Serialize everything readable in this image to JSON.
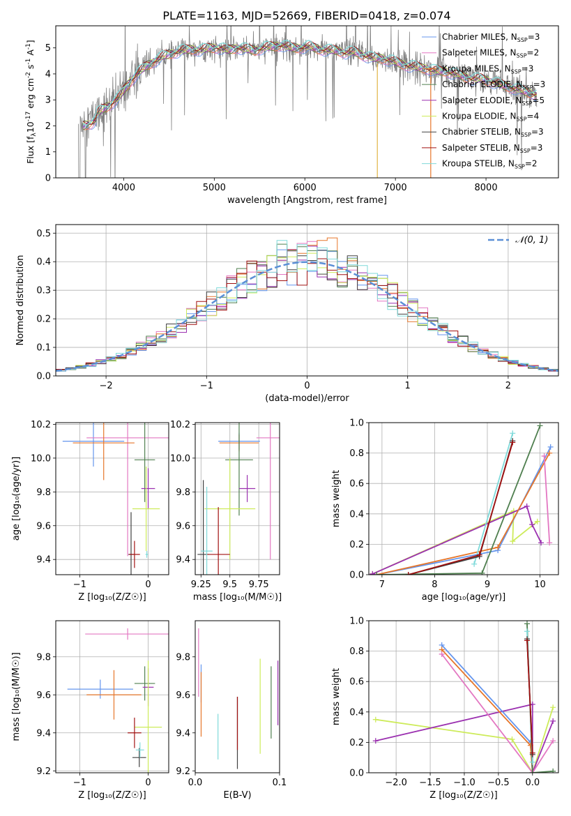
{
  "title": "PLATE=1163, MJD=52669, FIBERID=0418, z=0.074",
  "colors": {
    "Chabrier MILES": "#6495ED",
    "Salpeter MILES": "#E377C2",
    "Kroupa MILES": "#E6762A",
    "Chabrier ELODIE": "#4F7F4F",
    "Salpeter ELODIE": "#9B30B0",
    "Kroupa ELODIE": "#CDEB5A",
    "Chabrier STELIB": "#404040",
    "Salpeter STELIB": "#A01010",
    "Kroupa STELIB": "#7FDADA",
    "data": "#808080",
    "normal": "#5B8FD6"
  },
  "chart_data": [
    {
      "id": "spectrum",
      "type": "line",
      "title": "PLATE=1163, MJD=52669, FIBERID=0418, z=0.074",
      "xlabel": "wavelength [Angstrom, rest frame]",
      "ylabel_pre": "Flux [f",
      "ylabel_sub": "λ",
      "ylabel_mid": "10",
      "ylabel_sup1": "-17",
      "ylabel_post": " erg cm",
      "ylabel_sup2": "-2",
      "ylabel_s": " s",
      "ylabel_sup3": "-1",
      "ylabel_end": " A",
      "ylabel_sup4": "-1",
      "ylabel_close": "]",
      "xlim": [
        3250,
        8800
      ],
      "ylim": [
        0,
        5.85
      ],
      "xticks": [
        4000,
        5000,
        6000,
        7000,
        8000
      ],
      "yticks": [
        0,
        1,
        2,
        3,
        4,
        5
      ],
      "grid": false,
      "legend_position": "right",
      "legend": [
        {
          "label": "Chabrier MILES, N",
          "sub": "SSP",
          "n": "=3",
          "model": "Chabrier MILES"
        },
        {
          "label": "Salpeter MILES, N",
          "sub": "SSP",
          "n": "=2",
          "model": "Salpeter MILES"
        },
        {
          "label": "Kroupa MILES, N",
          "sub": "SSP",
          "n": "=3",
          "model": "Kroupa MILES"
        },
        {
          "label": "Chabrier ELODIE, N",
          "sub": "SSP",
          "n": "=3",
          "model": "Chabrier ELODIE"
        },
        {
          "label": "Salpeter ELODIE, N",
          "sub": "SSP",
          "n": "=5",
          "model": "Salpeter ELODIE"
        },
        {
          "label": "Kroupa ELODIE, N",
          "sub": "SSP",
          "n": "=4",
          "model": "Kroupa ELODIE"
        },
        {
          "label": "Chabrier STELIB, N",
          "sub": "SSP",
          "n": "=3",
          "model": "Chabrier STELIB"
        },
        {
          "label": "Salpeter STELIB, N",
          "sub": "SSP",
          "n": "=3",
          "model": "Salpeter STELIB"
        },
        {
          "label": "Kroupa STELIB, N",
          "sub": "SSP",
          "n": "=2",
          "model": "Kroupa STELIB"
        }
      ],
      "continuum": {
        "x": [
          3550,
          3650,
          3750,
          3850,
          3950,
          4050,
          4150,
          4250,
          4350,
          4450,
          4550,
          4650,
          4750,
          4850,
          4950,
          5050,
          5150,
          5250,
          5350,
          5450,
          5550,
          5650,
          5750,
          5850,
          5950,
          6050,
          6150,
          6250,
          6350,
          6450,
          6550,
          6650,
          6750,
          6850,
          6950,
          7050,
          7150,
          7250,
          7350,
          7450,
          7550,
          7650,
          7750,
          7850,
          7950,
          8050,
          8150,
          8250,
          8350,
          8450,
          8550
        ],
        "y": [
          2.2,
          2.3,
          2.6,
          2.8,
          3.1,
          3.6,
          4.0,
          4.3,
          4.5,
          4.7,
          4.8,
          4.9,
          4.95,
          4.9,
          5.0,
          5.0,
          4.9,
          5.0,
          4.95,
          4.9,
          5.0,
          5.05,
          5.1,
          5.0,
          5.0,
          5.05,
          4.95,
          4.9,
          4.9,
          4.8,
          4.85,
          4.7,
          4.6,
          4.6,
          4.5,
          4.4,
          4.3,
          4.25,
          4.2,
          4.1,
          4.1,
          4.0,
          3.9,
          3.8,
          3.8,
          3.7,
          3.6,
          3.5,
          3.4,
          3.3,
          3.2
        ]
      }
    },
    {
      "id": "residuals",
      "type": "line",
      "xlabel": "(data-model)/error",
      "ylabel": "Normed distribution",
      "xlim": [
        -2.5,
        2.5
      ],
      "ylim": [
        0,
        0.53
      ],
      "xticks": [
        -2,
        -1,
        0,
        1,
        2
      ],
      "yticks": [
        0.0,
        0.1,
        0.2,
        0.3,
        0.4,
        0.5
      ],
      "grid": true,
      "legend": [
        {
          "label": "𝒩(0, 1)",
          "style": "dashed"
        }
      ],
      "legend_position": "upper right",
      "bin_width": 0.1,
      "normal_curve": {
        "mean": 0,
        "std": 1
      }
    },
    {
      "id": "age-Z",
      "type": "scatter",
      "xlabel": "Z [log₁₀(Z/Z☉)]",
      "ylabel": "age  [log₁₀(age/yr)]",
      "xlim": [
        -1.35,
        0.3
      ],
      "ylim": [
        9.31,
        10.21
      ],
      "xticks": [
        -1,
        0
      ],
      "yticks": [
        9.4,
        9.6,
        9.8,
        10.0,
        10.2
      ],
      "grid": true,
      "points": [
        {
          "model": "Chabrier MILES",
          "x": -0.8,
          "y": 10.1,
          "xerr": 0.45,
          "yerr": 0.15
        },
        {
          "model": "Salpeter MILES",
          "x": -0.3,
          "y": 10.12,
          "xerr": 0.6,
          "yerr": 0.7
        },
        {
          "model": "Kroupa MILES",
          "x": -0.65,
          "y": 10.09,
          "xerr": 0.45,
          "yerr": 0.22
        },
        {
          "model": "Chabrier ELODIE",
          "x": -0.05,
          "y": 9.99,
          "xerr": 0.15,
          "yerr": 0.25
        },
        {
          "model": "Salpeter ELODIE",
          "x": 0.0,
          "y": 9.82,
          "xerr": 0.1,
          "yerr": 0.12
        },
        {
          "model": "Kroupa ELODIE",
          "x": -0.03,
          "y": 9.7,
          "xerr": 0.2,
          "yerr": 0.25
        },
        {
          "model": "Chabrier STELIB",
          "x": -0.25,
          "y": 9.43,
          "xerr": 0.04,
          "yerr": 0.25
        },
        {
          "model": "Salpeter STELIB",
          "x": -0.2,
          "y": 9.43,
          "xerr": 0.08,
          "yerr": 0.08
        },
        {
          "model": "Kroupa STELIB",
          "x": -0.02,
          "y": 9.43,
          "xerr": 0.02,
          "yerr": 0.02
        }
      ]
    },
    {
      "id": "age-mass",
      "type": "scatter",
      "xlabel": "mass [log₁₀(M/M☉)]",
      "ylabel": "",
      "xlim": [
        9.2,
        9.93
      ],
      "ylim": [
        9.31,
        10.21
      ],
      "xticks": [
        9.25,
        9.5,
        9.75
      ],
      "yticks": [
        9.4,
        9.6,
        9.8,
        10.0,
        10.2
      ],
      "grid": true,
      "points": [
        {
          "model": "Chabrier MILES",
          "x": 9.58,
          "y": 10.1,
          "xerr": 0.18,
          "yerr": 0.05
        },
        {
          "model": "Salpeter MILES",
          "x": 9.85,
          "y": 10.12,
          "xerr": 0.12,
          "yerr": 0.72
        },
        {
          "model": "Kroupa MILES",
          "x": 9.58,
          "y": 10.09,
          "xerr": 0.17,
          "yerr": 0.05
        },
        {
          "model": "Chabrier ELODIE",
          "x": 9.58,
          "y": 9.99,
          "xerr": 0.12,
          "yerr": 0.33
        },
        {
          "model": "Salpeter ELODIE",
          "x": 9.65,
          "y": 9.82,
          "xerr": 0.07,
          "yerr": 0.08
        },
        {
          "model": "Kroupa ELODIE",
          "x": 9.5,
          "y": 9.7,
          "xerr": 0.22,
          "yerr": 0.3
        },
        {
          "model": "Chabrier STELIB",
          "x": 9.27,
          "y": 9.43,
          "xerr": 0.05,
          "yerr": 0.44
        },
        {
          "model": "Salpeter STELIB",
          "x": 9.4,
          "y": 9.43,
          "xerr": 0.1,
          "yerr": 0.28
        },
        {
          "model": "Kroupa STELIB",
          "x": 9.3,
          "y": 9.45,
          "xerr": 0.05,
          "yerr": 0.38
        }
      ]
    },
    {
      "id": "weight-age",
      "type": "line",
      "xlabel": "age  [log₁₀(age/yr)]",
      "ylabel": "mass weight",
      "xlim": [
        6.75,
        10.35
      ],
      "ylim": [
        0,
        1.0
      ],
      "xticks": [
        7,
        8,
        9,
        10
      ],
      "yticks": [
        0.0,
        0.2,
        0.4,
        0.6,
        0.8,
        1.0
      ],
      "grid": true,
      "series": [
        {
          "model": "Kroupa ELODIE",
          "x": [
            6.82,
            9.5,
            9.48,
            9.95
          ],
          "y": [
            0.005,
            0.42,
            0.22,
            0.35
          ]
        },
        {
          "model": "Salpeter ELODIE",
          "x": [
            6.82,
            9.75,
            9.85,
            10.02
          ],
          "y": [
            0.005,
            0.45,
            0.33,
            0.21
          ]
        },
        {
          "model": "Chabrier MILES",
          "x": [
            6.9,
            9.2,
            10.2
          ],
          "y": [
            0.0,
            0.16,
            0.84
          ]
        },
        {
          "model": "Kroupa MILES",
          "x": [
            6.9,
            9.2,
            10.18
          ],
          "y": [
            0.0,
            0.18,
            0.8
          ]
        },
        {
          "model": "Salpeter MILES",
          "x": [
            10.08,
            10.18
          ],
          "y": [
            0.78,
            0.21
          ]
        },
        {
          "model": "Chabrier ELODIE",
          "x": [
            6.9,
            8.9,
            10.0
          ],
          "y": [
            0.0,
            0.01,
            0.98
          ]
        },
        {
          "model": "Kroupa STELIB",
          "x": [
            8.75,
            9.48
          ],
          "y": [
            0.07,
            0.93
          ]
        },
        {
          "model": "Chabrier STELIB",
          "x": [
            7.5,
            8.85,
            9.48
          ],
          "y": [
            0.0,
            0.12,
            0.88
          ]
        },
        {
          "model": "Salpeter STELIB",
          "x": [
            7.5,
            8.85,
            9.48
          ],
          "y": [
            0.0,
            0.13,
            0.87
          ]
        }
      ]
    },
    {
      "id": "mass-Z",
      "type": "scatter",
      "xlabel": "Z [log₁₀(Z/Z☉)]",
      "ylabel": "mass [log₁₀(M/M☉)]",
      "xlim": [
        -1.35,
        0.3
      ],
      "ylim": [
        9.19,
        9.99
      ],
      "xticks": [
        -1,
        0
      ],
      "yticks": [
        9.2,
        9.4,
        9.6,
        9.8
      ],
      "grid": true,
      "points": [
        {
          "model": "Chabrier MILES",
          "x": -0.7,
          "y": 9.63,
          "xerr": 0.48,
          "yerr": 0.05
        },
        {
          "model": "Salpeter MILES",
          "x": -0.3,
          "y": 9.92,
          "xerr": 0.62,
          "yerr": 0.03
        },
        {
          "model": "Kroupa MILES",
          "x": -0.5,
          "y": 9.6,
          "xerr": 0.4,
          "yerr": 0.13
        },
        {
          "model": "Chabrier ELODIE",
          "x": -0.05,
          "y": 9.66,
          "xerr": 0.15,
          "yerr": 0.09
        },
        {
          "model": "Salpeter ELODIE",
          "x": 0.0,
          "y": 9.64,
          "xerr": 0.08,
          "yerr": 0.1
        },
        {
          "model": "Kroupa ELODIE",
          "x": 0.0,
          "y": 9.43,
          "xerr": 0.2,
          "yerr": 0.35
        },
        {
          "model": "Chabrier STELIB",
          "x": -0.13,
          "y": 9.27,
          "xerr": 0.1,
          "yerr": 0.05
        },
        {
          "model": "Salpeter STELIB",
          "x": -0.2,
          "y": 9.4,
          "xerr": 0.1,
          "yerr": 0.08
        },
        {
          "model": "Kroupa STELIB",
          "x": -0.12,
          "y": 9.31,
          "xerr": 0.06,
          "yerr": 0.04
        }
      ]
    },
    {
      "id": "mass-EBV",
      "type": "scatter",
      "xlabel": "E(B-V)",
      "ylabel": "",
      "xlim": [
        0.0,
        0.1
      ],
      "ylim": [
        9.19,
        9.99
      ],
      "xticks": [
        0.0,
        0.1
      ],
      "yticks": [
        9.2,
        9.4,
        9.6,
        9.8
      ],
      "grid": false,
      "points": [
        {
          "model": "Chabrier MILES",
          "x": 0.007,
          "y": 9.66,
          "yerr": 0.1
        },
        {
          "model": "Salpeter MILES",
          "x": 0.004,
          "y": 9.77,
          "yerr": 0.18
        },
        {
          "model": "Kroupa MILES",
          "x": 0.007,
          "y": 9.55,
          "yerr": 0.17
        },
        {
          "model": "Chabrier ELODIE",
          "x": 0.09,
          "y": 9.56,
          "yerr": 0.19
        },
        {
          "model": "Salpeter ELODIE",
          "x": 0.098,
          "y": 9.61,
          "yerr": 0.17
        },
        {
          "model": "Kroupa ELODIE",
          "x": 0.077,
          "y": 9.54,
          "yerr": 0.25
        },
        {
          "model": "Chabrier STELIB",
          "x": 0.05,
          "y": 9.4,
          "yerr": 0.19
        },
        {
          "model": "Salpeter STELIB",
          "x": 0.05,
          "y": 9.45,
          "yerr": 0.14
        },
        {
          "model": "Kroupa STELIB",
          "x": 0.027,
          "y": 9.38,
          "yerr": 0.12
        }
      ]
    },
    {
      "id": "weight-Z",
      "type": "line",
      "xlabel": "Z [log₁₀(Z/Z☉)]",
      "ylabel": "mass weight",
      "xlim": [
        -2.4,
        0.38
      ],
      "ylim": [
        0,
        1.0
      ],
      "xticks": [
        -2.0,
        -1.5,
        -1.0,
        -0.5,
        0.0
      ],
      "yticks": [
        0.0,
        0.2,
        0.4,
        0.6,
        0.8,
        1.0
      ],
      "grid": true,
      "series": [
        {
          "model": "Kroupa ELODIE",
          "x": [
            -2.3,
            -0.3,
            0.0,
            0.3
          ],
          "y": [
            0.35,
            0.22,
            0.0,
            0.43
          ]
        },
        {
          "model": "Salpeter ELODIE",
          "x": [
            -2.3,
            0.0,
            0.0,
            0.3
          ],
          "y": [
            0.21,
            0.45,
            0.0,
            0.34
          ]
        },
        {
          "model": "Chabrier MILES",
          "x": [
            -1.33,
            -0.03,
            0.0
          ],
          "y": [
            0.84,
            0.2,
            0.0
          ]
        },
        {
          "model": "Kroupa MILES",
          "x": [
            -1.33,
            -0.03,
            0.0
          ],
          "y": [
            0.81,
            0.18,
            0.0
          ]
        },
        {
          "model": "Salpeter MILES",
          "x": [
            -1.33,
            0.0,
            0.3
          ],
          "y": [
            0.78,
            0.0,
            0.21
          ]
        },
        {
          "model": "Chabrier ELODIE",
          "x": [
            -0.08,
            0.0,
            0.3
          ],
          "y": [
            0.98,
            0.0,
            0.01
          ]
        },
        {
          "model": "Kroupa STELIB",
          "x": [
            -0.08,
            0.0
          ],
          "y": [
            0.93,
            0.07
          ]
        },
        {
          "model": "Chabrier STELIB",
          "x": [
            -0.08,
            0.0
          ],
          "y": [
            0.88,
            0.12
          ]
        },
        {
          "model": "Salpeter STELIB",
          "x": [
            -0.08,
            0.0
          ],
          "y": [
            0.87,
            0.13
          ]
        }
      ]
    }
  ]
}
